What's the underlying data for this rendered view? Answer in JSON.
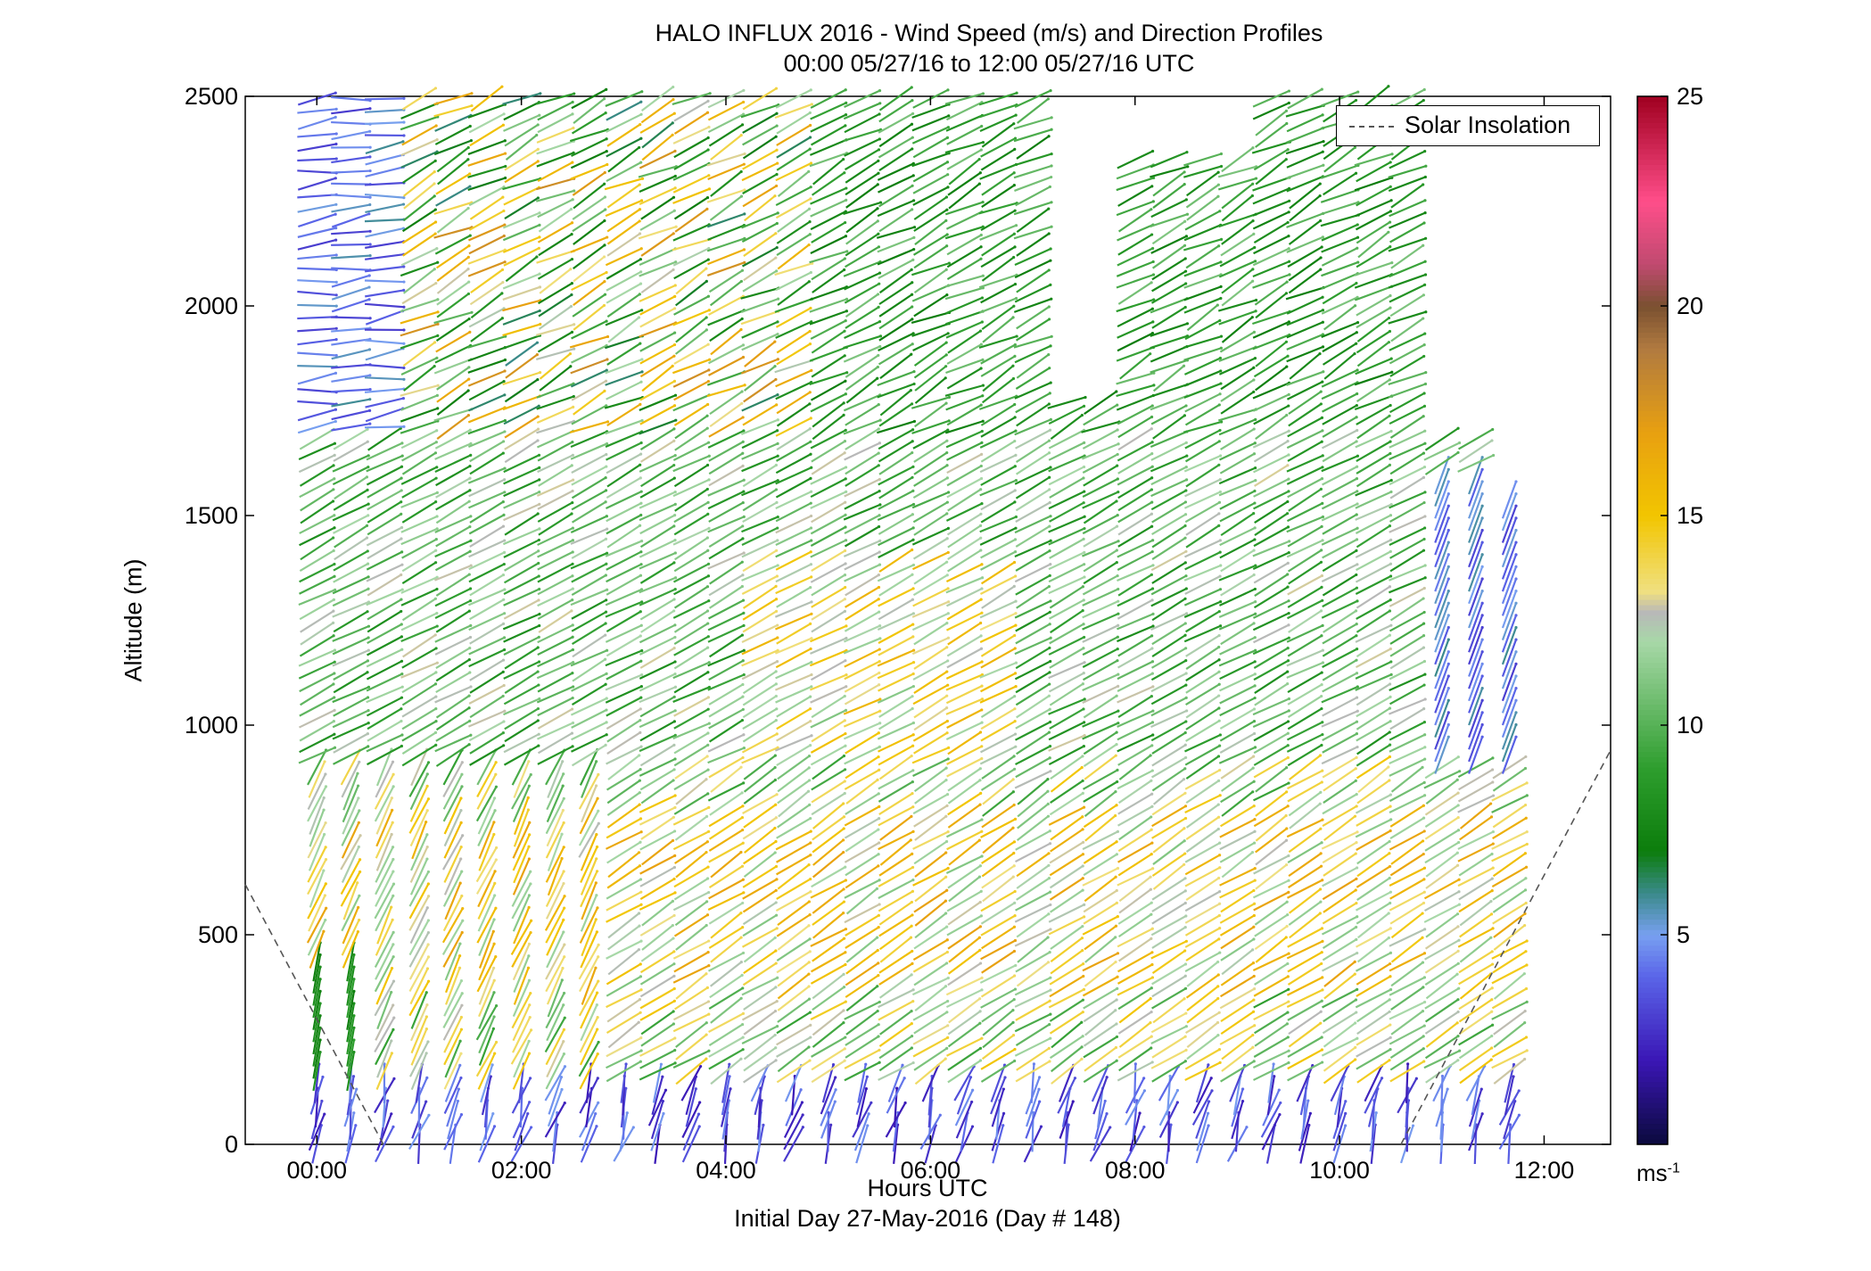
{
  "chart_data": {
    "type": "wind-barb-profile",
    "title": "HALO INFLUX 2016 - Wind Speed (m/s) and Direction Profiles",
    "subtitle": "00:00 05/27/16 to 12:00 05/27/16  UTC",
    "xlabel": "Hours UTC",
    "xlabel2": "Initial Day 27-May-2016 (Day # 148)",
    "ylabel": "Altitude (m)",
    "xlim_hours": [
      -0.7,
      12.65
    ],
    "ylim": [
      0,
      2500
    ],
    "x_ticks": [
      {
        "value": 0,
        "label": "00:00"
      },
      {
        "value": 2,
        "label": "02:00"
      },
      {
        "value": 4,
        "label": "04:00"
      },
      {
        "value": 6,
        "label": "06:00"
      },
      {
        "value": 8,
        "label": "08:00"
      },
      {
        "value": 10,
        "label": "10:00"
      },
      {
        "value": 12,
        "label": "12:00"
      }
    ],
    "y_ticks": [
      0,
      500,
      1000,
      1500,
      2000,
      2500
    ],
    "legend": {
      "label": "Solar Insolation",
      "placement": "top-right"
    },
    "colorbar": {
      "min": 0,
      "max": 25,
      "ticks": [
        5,
        10,
        15,
        20,
        25
      ],
      "unit": "ms",
      "unit_exp": "-1"
    },
    "colors": {
      "insolation": "#555555",
      "low_speed": "#3a16b5",
      "light_blue": "#78a0f0",
      "green_dark": "#0c7d0c",
      "green_light": "#8fce8f",
      "yellow": "#f2c500",
      "orange": "#e8a010",
      "red": "#c0142a"
    },
    "solar_insolation": {
      "left_segment": [
        [
          -0.7,
          620
        ],
        [
          0.65,
          0
        ]
      ],
      "right_segment": [
        [
          10.6,
          0
        ],
        [
          12.65,
          940
        ]
      ]
    },
    "profile_times_hours": [
      0.0,
      0.33,
      0.66,
      1.0,
      1.33,
      1.66,
      2.0,
      2.33,
      2.66,
      3.0,
      3.33,
      3.66,
      4.0,
      4.33,
      4.66,
      5.0,
      5.33,
      5.66,
      6.0,
      6.33,
      6.66,
      7.0,
      7.33,
      7.66,
      8.0,
      8.33,
      8.66,
      9.0,
      9.33,
      9.66,
      10.0,
      10.33,
      10.66,
      11.0,
      11.33,
      11.66
    ]
  }
}
